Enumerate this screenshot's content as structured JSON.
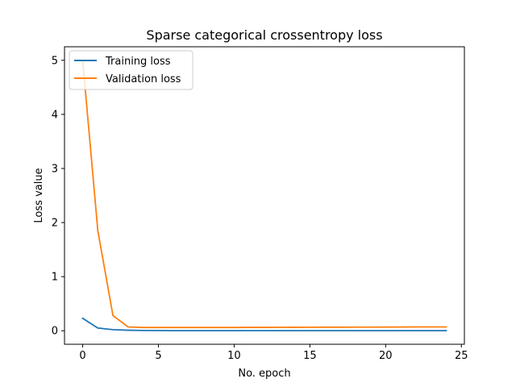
{
  "chart_data": {
    "type": "line",
    "title": "Sparse categorical crossentropy loss",
    "xlabel": "No. epoch",
    "ylabel": "Loss value",
    "xlim": [
      -1.2,
      25.2
    ],
    "ylim": [
      -0.25,
      5.25
    ],
    "xticks": [
      0,
      5,
      10,
      15,
      20,
      25
    ],
    "yticks": [
      0,
      1,
      2,
      3,
      4,
      5
    ],
    "grid": false,
    "legend_position": "upper-left",
    "x": [
      0,
      1,
      2,
      3,
      4,
      5,
      6,
      7,
      8,
      9,
      10,
      11,
      12,
      13,
      14,
      15,
      16,
      17,
      18,
      19,
      20,
      21,
      22,
      23,
      24
    ],
    "series": [
      {
        "name": "Training loss",
        "color": "#1f77b4",
        "values": [
          0.23,
          0.05,
          0.02,
          0.01,
          0.005,
          0.003,
          0.002,
          0.002,
          0.002,
          0.001,
          0.001,
          0.001,
          0.001,
          0.001,
          0.001,
          0.001,
          0.001,
          0.001,
          0.001,
          0.001,
          0.001,
          0.001,
          0.001,
          0.001,
          0.001
        ]
      },
      {
        "name": "Validation loss",
        "color": "#ff7f0e",
        "values": [
          5.0,
          1.85,
          0.28,
          0.07,
          0.06,
          0.06,
          0.06,
          0.06,
          0.06,
          0.06,
          0.06,
          0.062,
          0.062,
          0.063,
          0.064,
          0.065,
          0.066,
          0.066,
          0.067,
          0.067,
          0.068,
          0.069,
          0.07,
          0.07,
          0.07
        ]
      }
    ]
  }
}
